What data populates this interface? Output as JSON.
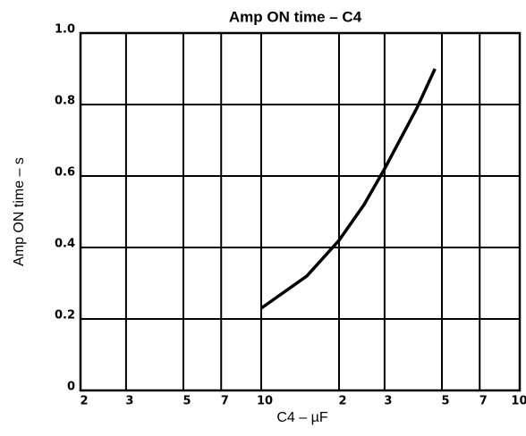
{
  "chart_data": {
    "type": "line",
    "title": "Amp ON time – C4",
    "xlabel": "C4 – µF",
    "ylabel": "Amp ON time – s",
    "xscale": "log",
    "xlim": [
      2,
      100
    ],
    "ylim": [
      0,
      1
    ],
    "xticks": [
      2,
      3,
      5,
      7,
      10,
      {
        "value": 20,
        "label": "2"
      },
      {
        "value": 30,
        "label": "3"
      },
      {
        "value": 50,
        "label": "5"
      },
      {
        "value": 70,
        "label": "7"
      },
      100
    ],
    "yticks": [
      0,
      0.2,
      0.4,
      0.6,
      0.8,
      {
        "value": 1,
        "label": "1.0"
      }
    ],
    "grid": true,
    "x": [
      10,
      15,
      20,
      25,
      30,
      40,
      47
    ],
    "series": [
      {
        "name": "Amp ON time",
        "color": "#000000",
        "values": [
          0.23,
          0.32,
          0.42,
          0.52,
          0.62,
          0.79,
          0.9
        ]
      }
    ]
  }
}
